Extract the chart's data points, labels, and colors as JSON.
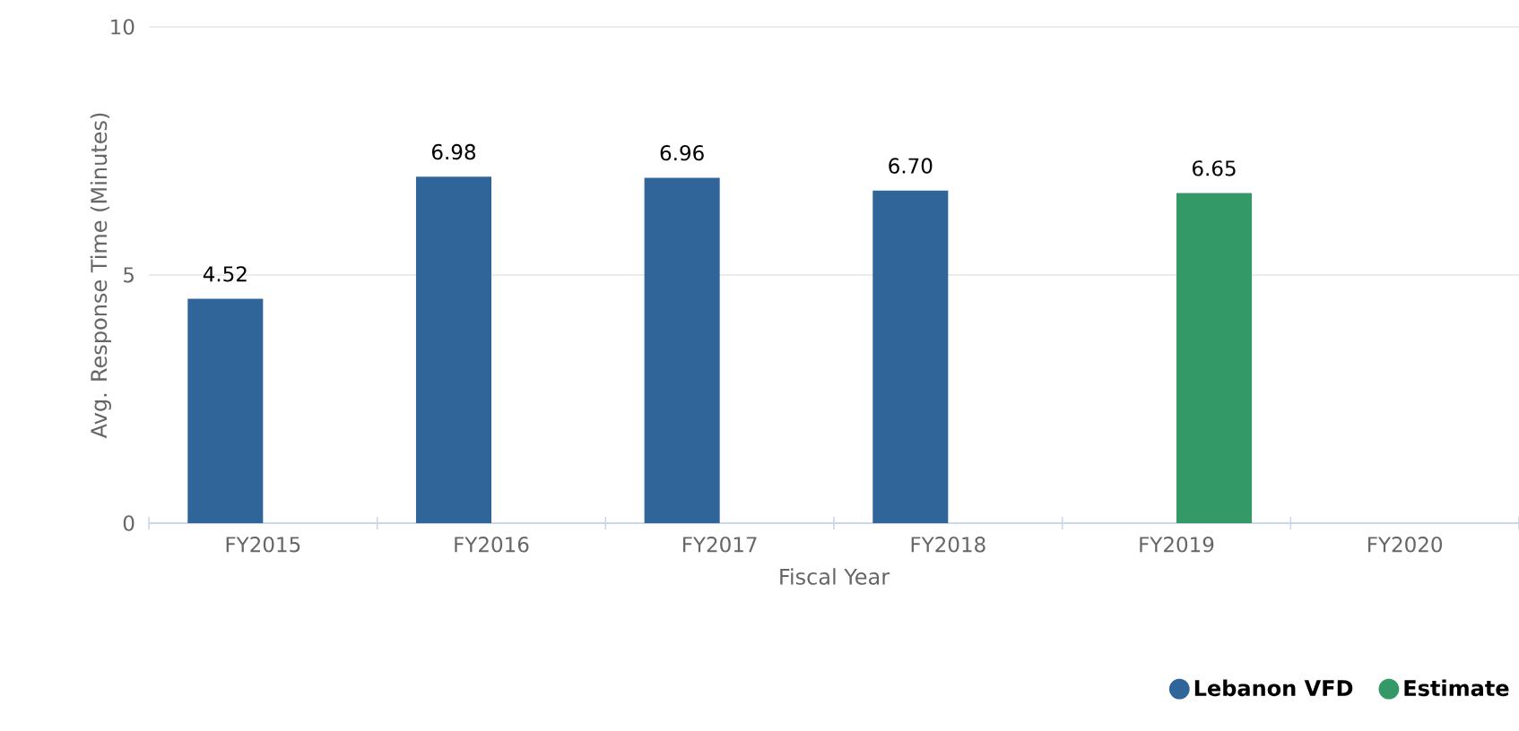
{
  "chart_data": {
    "type": "bar",
    "xlabel": "Fiscal Year",
    "ylabel": "Avg. Response Time (Minutes)",
    "categories": [
      "FY2015",
      "FY2016",
      "FY2017",
      "FY2018",
      "FY2019",
      "FY2020"
    ],
    "series": [
      {
        "name": "Lebanon VFD",
        "color": "#30659a",
        "values": [
          4.52,
          6.98,
          6.96,
          6.7,
          null,
          null
        ],
        "value_labels": [
          "4.52",
          "6.98",
          "6.96",
          "6.70",
          null,
          null
        ]
      },
      {
        "name": "Estimate",
        "color": "#339966",
        "values": [
          null,
          null,
          null,
          null,
          6.65,
          null
        ],
        "value_labels": [
          null,
          null,
          null,
          null,
          "6.65",
          null
        ]
      }
    ],
    "ylim": [
      0,
      10
    ],
    "yticks": [
      0,
      5,
      10
    ],
    "grid": "y",
    "legend": "bottom right"
  }
}
